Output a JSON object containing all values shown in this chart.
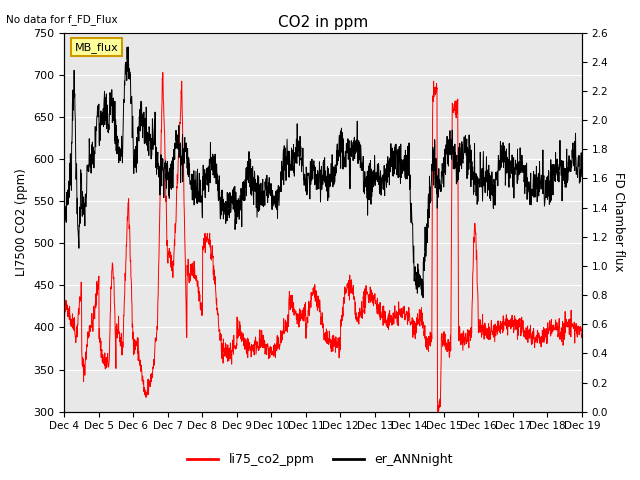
{
  "title": "CO2 in ppm",
  "top_left_text": "No data for f_FD_Flux",
  "ylabel_left": "LI7500 CO2 (ppm)",
  "ylabel_right": "FD Chamber flux",
  "ylim_left": [
    300,
    750
  ],
  "ylim_right": [
    0.0,
    2.6
  ],
  "yticks_left": [
    300,
    350,
    400,
    450,
    500,
    550,
    600,
    650,
    700,
    750
  ],
  "yticks_right": [
    0.0,
    0.2,
    0.4,
    0.6,
    0.8,
    1.0,
    1.2,
    1.4,
    1.6,
    1.8,
    2.0,
    2.2,
    2.4,
    2.6
  ],
  "xtick_labels": [
    "Dec 4",
    "Dec 5",
    "Dec 6",
    "Dec 7",
    "Dec 8",
    "Dec 9",
    "Dec 10",
    "Dec 11",
    "Dec 12",
    "Dec 13",
    "Dec 14",
    "Dec 15",
    "Dec 16",
    "Dec 17",
    "Dec 18",
    "Dec 19"
  ],
  "legend_labels": [
    "li75_co2_ppm",
    "er_ANNnight"
  ],
  "legend_colors": [
    "red",
    "black"
  ],
  "mb_flux_box_color": "#FFFF99",
  "mb_flux_border_color": "#CC9900",
  "background_color": "#e8e8e8",
  "red_line_color": "red",
  "black_line_color": "black"
}
